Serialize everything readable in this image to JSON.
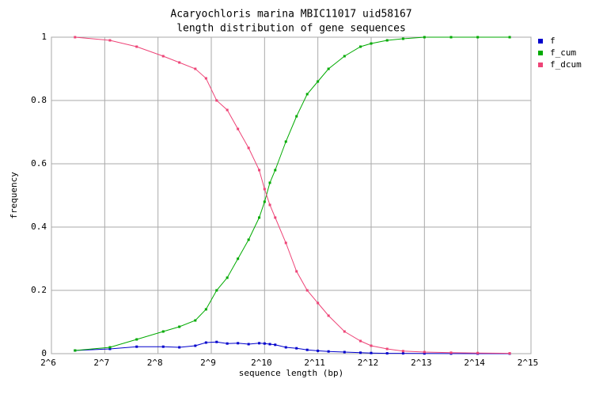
{
  "chart_data": {
    "type": "line",
    "title": "Acaryochloris marina MBIC11017 uid58167",
    "subtitle": "length distribution of gene sequences",
    "xlabel": "sequence length (bp)",
    "ylabel": "frequency",
    "xscale": "log",
    "xlog_base": 2,
    "xlim": [
      64,
      32768
    ],
    "xticks": [
      {
        "value": 64,
        "label": "2^6"
      },
      {
        "value": 128,
        "label": "2^7"
      },
      {
        "value": 256,
        "label": "2^8"
      },
      {
        "value": 512,
        "label": "2^9"
      },
      {
        "value": 1024,
        "label": "2^10"
      },
      {
        "value": 2048,
        "label": "2^11"
      },
      {
        "value": 4096,
        "label": "2^12"
      },
      {
        "value": 8192,
        "label": "2^13"
      },
      {
        "value": 16384,
        "label": "2^14"
      },
      {
        "value": 32768,
        "label": "2^15"
      }
    ],
    "ylim": [
      0,
      1
    ],
    "yticks": [
      0,
      0.2,
      0.4,
      0.6,
      0.8,
      1
    ],
    "grid": true,
    "legend": "right",
    "x": [
      87,
      137,
      194,
      274,
      338,
      416,
      478,
      549,
      630,
      724,
      832,
      955,
      1024,
      1097,
      1176,
      1351,
      1552,
      1783,
      2048,
      2353,
      2896,
      3566,
      4096,
      5043,
      6208,
      8192,
      11585,
      16384,
      24834
    ],
    "series": [
      {
        "name": "f",
        "color": "#0000cc",
        "values": [
          0.01,
          0.015,
          0.022,
          0.022,
          0.02,
          0.025,
          0.035,
          0.037,
          0.032,
          0.033,
          0.03,
          0.033,
          0.032,
          0.03,
          0.028,
          0.02,
          0.017,
          0.012,
          0.009,
          0.007,
          0.005,
          0.003,
          0.002,
          0.001,
          0.001,
          0.0005,
          0.0002,
          0.0001,
          0.0001
        ]
      },
      {
        "name": "f_cum",
        "color": "#00aa00",
        "values": [
          0.01,
          0.02,
          0.045,
          0.07,
          0.085,
          0.105,
          0.14,
          0.2,
          0.24,
          0.3,
          0.36,
          0.43,
          0.48,
          0.54,
          0.58,
          0.67,
          0.75,
          0.82,
          0.86,
          0.9,
          0.94,
          0.97,
          0.98,
          0.99,
          0.995,
          1,
          1,
          1,
          1
        ]
      },
      {
        "name": "f_dcum",
        "color": "#ee4477",
        "values": [
          1,
          0.99,
          0.97,
          0.94,
          0.92,
          0.9,
          0.87,
          0.8,
          0.77,
          0.71,
          0.65,
          0.58,
          0.52,
          0.47,
          0.43,
          0.35,
          0.26,
          0.2,
          0.16,
          0.12,
          0.07,
          0.04,
          0.025,
          0.015,
          0.008,
          0.005,
          0.003,
          0.002,
          0.001
        ]
      }
    ]
  }
}
